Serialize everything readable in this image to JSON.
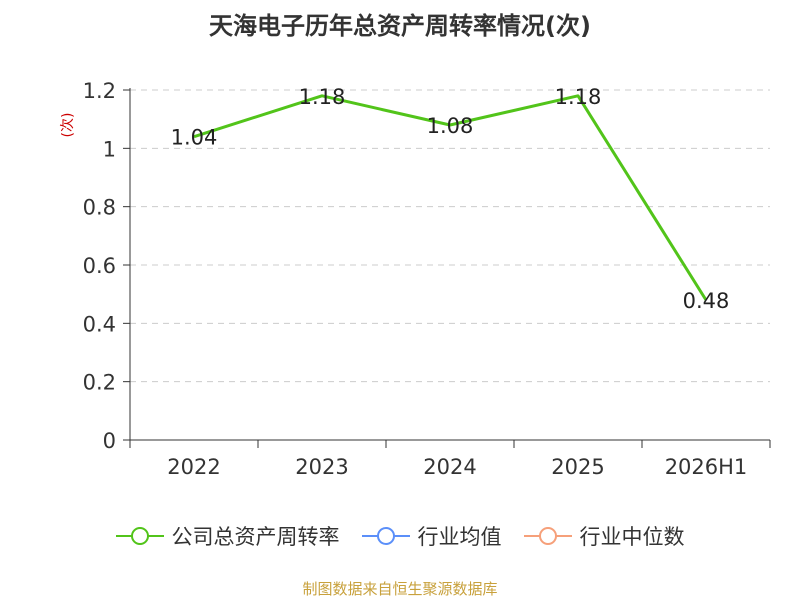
{
  "title": "天海电子历年总资产周转率情况(次)",
  "source": "制图数据来自恒生聚源数据库",
  "legend": [
    {
      "label": "公司总资产周转率",
      "color": "#52c41a"
    },
    {
      "label": "行业均值",
      "color": "#5b8ff9"
    },
    {
      "label": "行业中位数",
      "color": "#f6a07a"
    }
  ],
  "chart_data": {
    "type": "line",
    "title": "天海电子历年总资产周转率情况(次)",
    "ylabel": "(次)",
    "xlabel": "",
    "categories": [
      "2022",
      "2023",
      "2024",
      "2025",
      "2026H1"
    ],
    "series": [
      {
        "name": "公司总资产周转率",
        "color": "#52c41a",
        "values": [
          1.04,
          1.18,
          1.08,
          1.18,
          0.48
        ]
      }
    ],
    "y_ticks": [
      "0",
      "0.2",
      "0.4",
      "0.6",
      "0.8",
      "1",
      "1.2"
    ],
    "ylim": [
      0,
      1.2
    ],
    "grid": true,
    "legend_position": "bottom"
  }
}
